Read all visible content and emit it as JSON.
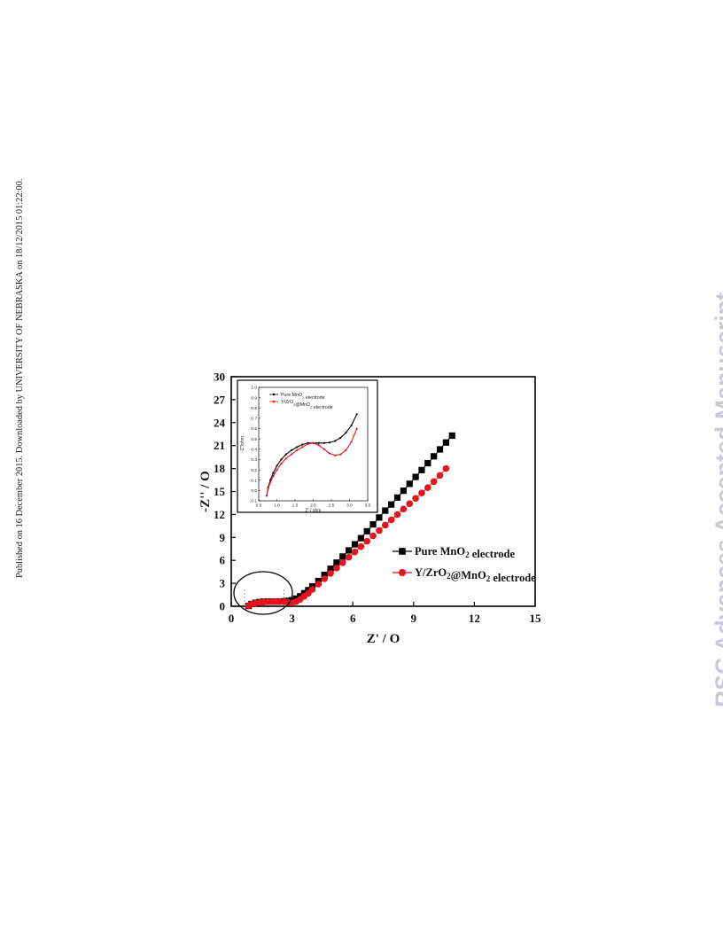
{
  "side_note": "Published on 16 December 2015. Downloaded by UNIVERSITY OF NEBRASKA on 18/12/2015 01:22:00.",
  "watermark": "RSC Advances Accepted Manuscript",
  "colors": {
    "series_pure": "#000000",
    "series_doped": "#e3141b",
    "watermark": "#c7c9d3"
  },
  "chart_data": [
    {
      "type": "scatter",
      "xlabel": "Z' / O",
      "ylabel": "-Z'' / O",
      "xlim": [
        0,
        15
      ],
      "ylim": [
        0,
        30
      ],
      "x_ticks": [
        0,
        3,
        6,
        9,
        12,
        15
      ],
      "y_ticks": [
        0,
        3,
        6,
        9,
        12,
        15,
        18,
        21,
        24,
        27,
        30
      ],
      "legend_position": "middle-right",
      "series": [
        {
          "name": "Pure MnO2 electrode",
          "marker": "square",
          "color": "#000000",
          "x": [
            0.85,
            1.0,
            1.2,
            1.4,
            1.6,
            1.8,
            2.0,
            2.2,
            2.4,
            2.6,
            2.8,
            3.0,
            3.2,
            3.4,
            3.6,
            3.8,
            4.0,
            4.3,
            4.6,
            4.9,
            5.2,
            5.5,
            5.8,
            6.1,
            6.4,
            6.7,
            7.0,
            7.3,
            7.6,
            7.9,
            8.2,
            8.5,
            8.8,
            9.1,
            9.4,
            9.7,
            10.0,
            10.3,
            10.6,
            10.9
          ],
          "y": [
            0.05,
            0.3,
            0.45,
            0.55,
            0.6,
            0.62,
            0.62,
            0.62,
            0.63,
            0.65,
            0.7,
            0.8,
            1.0,
            1.3,
            1.7,
            2.1,
            2.6,
            3.3,
            4.1,
            4.9,
            5.7,
            6.5,
            7.3,
            8.1,
            8.9,
            9.8,
            10.7,
            11.6,
            12.5,
            13.3,
            14.2,
            15.1,
            16.0,
            16.9,
            17.8,
            18.7,
            19.6,
            20.5,
            21.4,
            22.3
          ]
        },
        {
          "name": "Y/ZrO2@MnO2 electrode",
          "marker": "circle",
          "color": "#e3141b",
          "x": [
            0.85,
            1.0,
            1.2,
            1.4,
            1.6,
            1.8,
            2.0,
            2.2,
            2.4,
            2.6,
            2.8,
            3.0,
            3.2,
            3.4,
            3.6,
            3.8,
            4.0,
            4.3,
            4.6,
            4.9,
            5.2,
            5.5,
            5.8,
            6.1,
            6.4,
            6.7,
            7.0,
            7.3,
            7.6,
            7.9,
            8.2,
            8.5,
            8.8,
            9.1,
            9.4,
            9.7,
            10.0,
            10.3,
            10.6
          ],
          "y": [
            0.05,
            0.25,
            0.4,
            0.5,
            0.55,
            0.58,
            0.6,
            0.6,
            0.6,
            0.58,
            0.5,
            0.45,
            0.6,
            0.9,
            1.3,
            1.7,
            2.2,
            2.9,
            3.6,
            4.3,
            5.0,
            5.7,
            6.4,
            7.1,
            7.8,
            8.5,
            9.2,
            9.9,
            10.6,
            11.3,
            12.0,
            12.7,
            13.4,
            14.1,
            14.8,
            15.5,
            16.3,
            17.1,
            18.0
          ]
        }
      ],
      "annotation": "ellipse highlighting the high-frequency region near the origin"
    },
    {
      "type": "line",
      "role": "inset",
      "xlabel": "Z' / ohm",
      "ylabel": "-Z''/ohm",
      "xlim": [
        0.5,
        3.5
      ],
      "ylim": [
        -0.1,
        1.0
      ],
      "x_ticks": [
        "0.5",
        "1.0",
        "1.5",
        "2.0",
        "2.5",
        "3.0",
        "3.5"
      ],
      "y_ticks": [
        "-0.1",
        "0.0",
        "0.1",
        "0.2",
        "0.3",
        "0.4",
        "0.5",
        "0.6",
        "0.7",
        "0.8",
        "0.9",
        "1.0"
      ],
      "legend_position": "top-left",
      "series": [
        {
          "name": "Pure MnO2 electrode",
          "color": "#000000",
          "x": [
            0.72,
            0.76,
            0.82,
            0.9,
            1.0,
            1.12,
            1.25,
            1.4,
            1.55,
            1.7,
            1.85,
            2.0,
            2.15,
            2.3,
            2.45,
            2.6,
            2.75,
            2.9,
            3.05,
            3.2
          ],
          "y": [
            -0.05,
            0.03,
            0.1,
            0.17,
            0.24,
            0.3,
            0.35,
            0.39,
            0.42,
            0.445,
            0.46,
            0.46,
            0.46,
            0.46,
            0.465,
            0.48,
            0.51,
            0.56,
            0.63,
            0.74
          ]
        },
        {
          "name": "Y/ZrO2@MnO2 electrode",
          "color": "#e3141b",
          "x": [
            0.72,
            0.76,
            0.82,
            0.9,
            1.0,
            1.12,
            1.25,
            1.4,
            1.55,
            1.7,
            1.85,
            2.0,
            2.15,
            2.3,
            2.45,
            2.6,
            2.75,
            2.9,
            3.05,
            3.2
          ],
          "y": [
            -0.05,
            0.02,
            0.08,
            0.14,
            0.2,
            0.26,
            0.31,
            0.35,
            0.39,
            0.42,
            0.45,
            0.46,
            0.44,
            0.4,
            0.36,
            0.34,
            0.35,
            0.39,
            0.47,
            0.6
          ]
        }
      ]
    }
  ]
}
